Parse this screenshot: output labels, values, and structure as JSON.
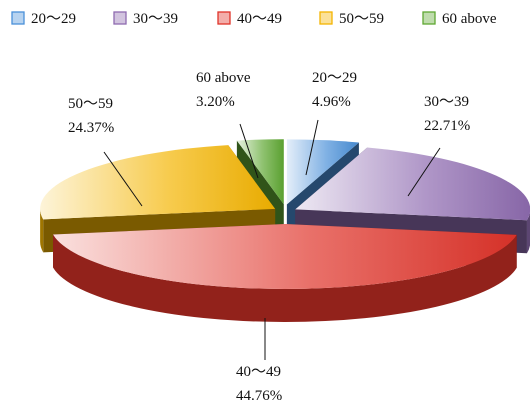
{
  "chart_data": {
    "type": "pie",
    "style": "3d-exploded",
    "legend_position": "top",
    "categories": [
      "20～29",
      "30～39",
      "40～49",
      "50～59",
      "60 above"
    ],
    "values": [
      4.96,
      22.71,
      44.76,
      24.37,
      3.2
    ],
    "value_labels": [
      "4.96%",
      "22.71%",
      "44.76%",
      "24.37%",
      "3.20%"
    ],
    "colors": [
      "#4a90d9",
      "#8e6bb0",
      "#e0342a",
      "#f4b400",
      "#5fa832"
    ]
  }
}
